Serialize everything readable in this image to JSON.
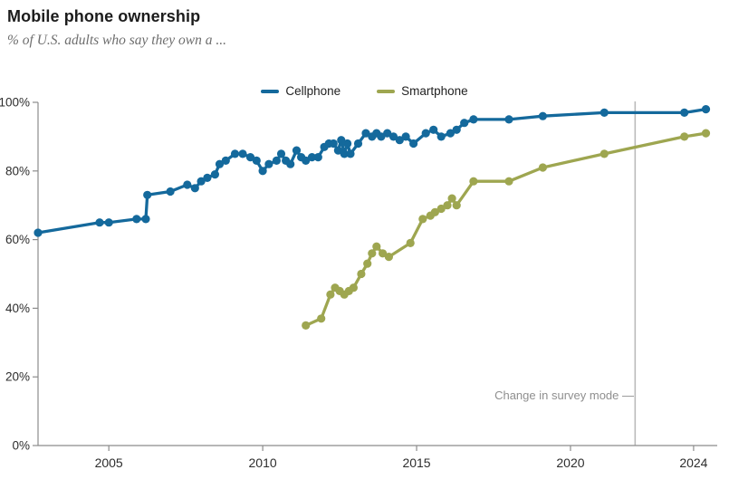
{
  "header": {
    "title": "Mobile phone ownership",
    "subtitle": "% of U.S. adults who say they own a ..."
  },
  "legend": [
    {
      "label": "Cellphone",
      "color": "#14699c"
    },
    {
      "label": "Smartphone",
      "color": "#9ea650"
    }
  ],
  "annotation": {
    "label": "Change in survey mode —",
    "x_year": 2022.1,
    "line_color": "#bbbbbb"
  },
  "style_colors": {
    "axis": "#8c8c8c",
    "tick_label": "#2d2d2d",
    "background": "#ffffff"
  },
  "chart_data": {
    "type": "line",
    "title": "Mobile phone ownership",
    "subtitle": "% of U.S. adults who say they own a ...",
    "xlabel": "",
    "ylabel": "",
    "legend_position": "top-center",
    "grid": false,
    "x_range": [
      2002.7,
      2024.65
    ],
    "y_range": [
      0,
      100
    ],
    "x_ticks": [
      {
        "value": 2005,
        "label": "2005"
      },
      {
        "value": 2010,
        "label": "2010"
      },
      {
        "value": 2015,
        "label": "2015"
      },
      {
        "value": 2020,
        "label": "2020"
      },
      {
        "value": 2024,
        "label": "2024"
      }
    ],
    "y_ticks": [
      {
        "value": 0,
        "label": "0%"
      },
      {
        "value": 20,
        "label": "20%"
      },
      {
        "value": 40,
        "label": "40%"
      },
      {
        "value": 60,
        "label": "60%"
      },
      {
        "value": 80,
        "label": "80%"
      },
      {
        "value": 100,
        "label": "100%"
      }
    ],
    "series": [
      {
        "name": "Cellphone",
        "color": "#14699c",
        "points": [
          [
            2002.7,
            62
          ],
          [
            2004.7,
            65
          ],
          [
            2005.0,
            65
          ],
          [
            2005.9,
            66
          ],
          [
            2006.2,
            66
          ],
          [
            2006.25,
            73
          ],
          [
            2007.0,
            74
          ],
          [
            2007.55,
            76
          ],
          [
            2007.8,
            75
          ],
          [
            2008.0,
            77
          ],
          [
            2008.2,
            78
          ],
          [
            2008.45,
            79
          ],
          [
            2008.6,
            82
          ],
          [
            2008.8,
            83
          ],
          [
            2009.1,
            85
          ],
          [
            2009.35,
            85
          ],
          [
            2009.6,
            84
          ],
          [
            2009.8,
            83
          ],
          [
            2010.0,
            80
          ],
          [
            2010.2,
            82
          ],
          [
            2010.45,
            83
          ],
          [
            2010.6,
            85
          ],
          [
            2010.75,
            83
          ],
          [
            2010.9,
            82
          ],
          [
            2011.1,
            86
          ],
          [
            2011.25,
            84
          ],
          [
            2011.4,
            83
          ],
          [
            2011.6,
            84
          ],
          [
            2011.8,
            84
          ],
          [
            2012.0,
            87
          ],
          [
            2012.15,
            88
          ],
          [
            2012.3,
            88
          ],
          [
            2012.45,
            86
          ],
          [
            2012.55,
            89
          ],
          [
            2012.65,
            85
          ],
          [
            2012.75,
            88
          ],
          [
            2012.85,
            85
          ],
          [
            2013.1,
            88
          ],
          [
            2013.35,
            91
          ],
          [
            2013.55,
            90
          ],
          [
            2013.7,
            91
          ],
          [
            2013.85,
            90
          ],
          [
            2014.05,
            91
          ],
          [
            2014.25,
            90
          ],
          [
            2014.45,
            89
          ],
          [
            2014.65,
            90
          ],
          [
            2014.9,
            88
          ],
          [
            2015.3,
            91
          ],
          [
            2015.55,
            92
          ],
          [
            2015.8,
            90
          ],
          [
            2016.1,
            91
          ],
          [
            2016.3,
            92
          ],
          [
            2016.55,
            94
          ],
          [
            2016.85,
            95
          ],
          [
            2018.0,
            95
          ],
          [
            2019.1,
            96
          ],
          [
            2021.1,
            97
          ],
          [
            2023.7,
            97
          ],
          [
            2024.4,
            98
          ]
        ]
      },
      {
        "name": "Smartphone",
        "color": "#9ea650",
        "points": [
          [
            2011.4,
            35
          ],
          [
            2011.9,
            37
          ],
          [
            2012.2,
            44
          ],
          [
            2012.35,
            46
          ],
          [
            2012.5,
            45
          ],
          [
            2012.65,
            44
          ],
          [
            2012.8,
            45
          ],
          [
            2012.95,
            46
          ],
          [
            2013.2,
            50
          ],
          [
            2013.4,
            53
          ],
          [
            2013.55,
            56
          ],
          [
            2013.7,
            58
          ],
          [
            2013.9,
            56
          ],
          [
            2014.1,
            55
          ],
          [
            2014.8,
            59
          ],
          [
            2015.2,
            66
          ],
          [
            2015.45,
            67
          ],
          [
            2015.6,
            68
          ],
          [
            2015.8,
            69
          ],
          [
            2016.0,
            70
          ],
          [
            2016.15,
            72
          ],
          [
            2016.3,
            70
          ],
          [
            2016.85,
            77
          ],
          [
            2018.0,
            77
          ],
          [
            2019.1,
            81
          ],
          [
            2021.1,
            85
          ],
          [
            2023.7,
            90
          ],
          [
            2024.4,
            91
          ]
        ]
      }
    ]
  }
}
